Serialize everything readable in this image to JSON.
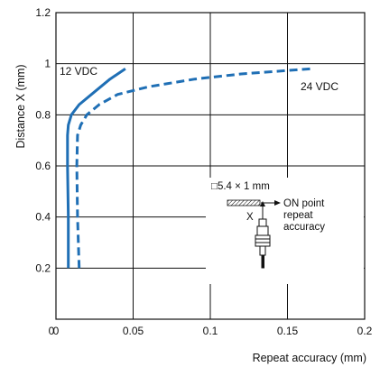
{
  "chart_data": {
    "type": "line",
    "xlabel": "Repeat accuracy (mm)",
    "ylabel": "Distance X (mm)",
    "xlim": [
      0,
      0.2
    ],
    "ylim": [
      0,
      1.2
    ],
    "x_ticks": [
      "0",
      "0.05",
      "0.1",
      "0.15",
      "0.2"
    ],
    "y_ticks": [
      "0.2",
      "0.4",
      "0.6",
      "0.8",
      "1",
      "1.2"
    ],
    "grid": true,
    "series": [
      {
        "name": "12 VDC",
        "color": "#1f6fb5",
        "style": "solid",
        "x": [
          0.008,
          0.008,
          0.0075,
          0.0075,
          0.008,
          0.01,
          0.015,
          0.025,
          0.035,
          0.045
        ],
        "y": [
          0.2,
          0.4,
          0.6,
          0.72,
          0.76,
          0.8,
          0.84,
          0.89,
          0.94,
          0.98
        ]
      },
      {
        "name": "24 VDC",
        "color": "#1f6fb5",
        "style": "dashed",
        "x": [
          0.015,
          0.014,
          0.0135,
          0.014,
          0.016,
          0.02,
          0.028,
          0.04,
          0.06,
          0.09,
          0.12,
          0.165
        ],
        "y": [
          0.2,
          0.4,
          0.6,
          0.72,
          0.76,
          0.8,
          0.84,
          0.88,
          0.91,
          0.94,
          0.96,
          0.98
        ]
      }
    ],
    "inset": {
      "target_label": "□5.4 × 1 mm",
      "axis_label": "X",
      "note_lines": [
        "ON point",
        "repeat",
        "accuracy"
      ]
    }
  }
}
